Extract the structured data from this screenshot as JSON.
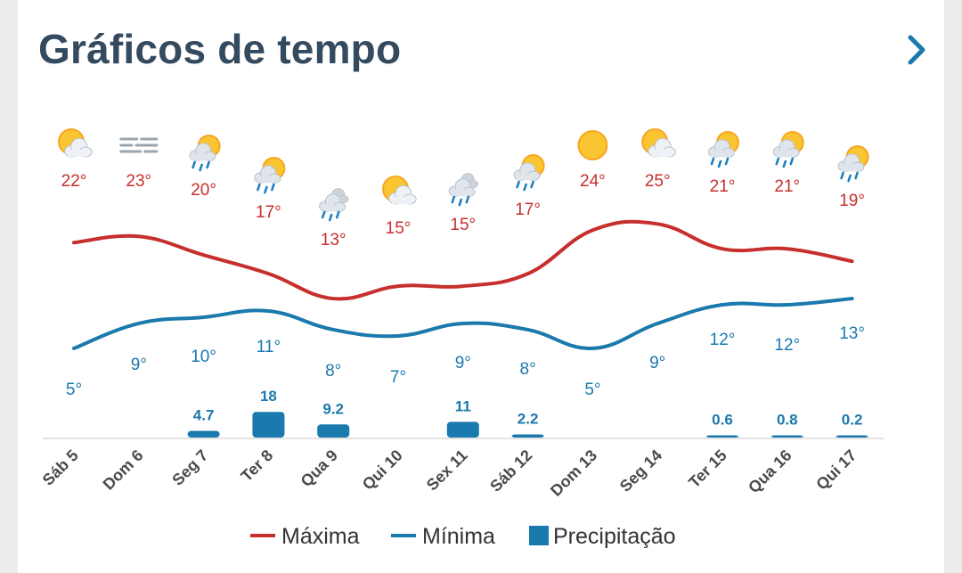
{
  "header": {
    "title": "Gráficos de tempo",
    "more_icon": "chevron-right-icon"
  },
  "colors": {
    "max": "#c62f2c",
    "min": "#1a79ad",
    "precip": "#1a79ad",
    "title": "#344a5e",
    "axis_text": "#4a4a4a"
  },
  "chart_data": {
    "type": "line",
    "categories": [
      "Sáb 5",
      "Dom 6",
      "Seg 7",
      "Ter 8",
      "Qua 9",
      "Qui 10",
      "Sex 11",
      "Sáb 12",
      "Dom 13",
      "Seg 14",
      "Ter 15",
      "Qua 16",
      "Qui 17"
    ],
    "icons": [
      "partly-cloudy-icon",
      "fog-icon",
      "sun-rain-icon",
      "sun-rain-icon",
      "cloud-rain-icon",
      "partly-cloudy-icon",
      "cloud-rain-icon",
      "sun-rain-icon",
      "sun-icon",
      "partly-cloudy-icon",
      "sun-rain-icon",
      "sun-rain-icon",
      "sun-rain-icon"
    ],
    "series": [
      {
        "name": "Máxima",
        "values": [
          22,
          23,
          20,
          17,
          13,
          15,
          15,
          17,
          24,
          25,
          21,
          21,
          19
        ],
        "labels": [
          "22°",
          "23°",
          "20°",
          "17°",
          "13°",
          "15°",
          "15°",
          "17°",
          "24°",
          "25°",
          "21°",
          "21°",
          "19°"
        ]
      },
      {
        "name": "Mínima",
        "values": [
          5,
          9,
          10,
          11,
          8,
          7,
          9,
          8,
          5,
          9,
          12,
          12,
          13
        ],
        "labels": [
          "5°",
          "9°",
          "10°",
          "11°",
          "8°",
          "7°",
          "9°",
          "8°",
          "5°",
          "9°",
          "12°",
          "12°",
          "13°"
        ]
      },
      {
        "name": "Precipitação",
        "values": [
          0,
          0,
          4.7,
          18,
          9.2,
          0,
          11,
          2.2,
          0,
          0,
          0.6,
          0.8,
          0.2
        ],
        "labels": [
          "",
          "",
          "4.7",
          "18",
          "9.2",
          "",
          "11",
          "2.2",
          "",
          "",
          "0.6",
          "0.8",
          "0.2"
        ]
      }
    ],
    "legend": [
      "Máxima",
      "Mínima",
      "Precipitação"
    ],
    "legend_position": "bottom",
    "grid": false
  }
}
